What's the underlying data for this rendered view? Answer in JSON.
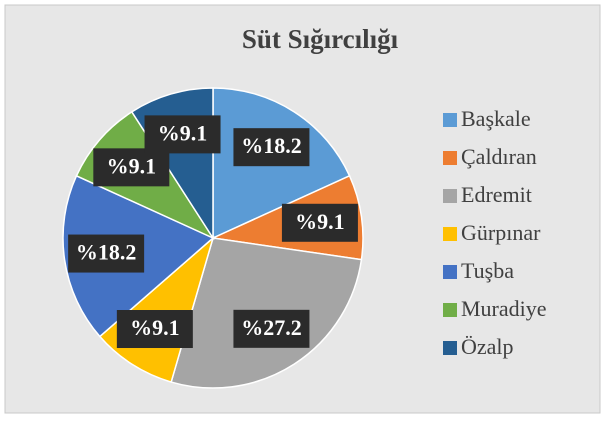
{
  "chart_data": {
    "type": "pie",
    "title": "Süt Sığırcılığı",
    "categories": [
      "Başkale",
      "Çaldıran",
      "Edremit",
      "Gürpınar",
      "Tuşba",
      "Muradiye",
      "Özalp"
    ],
    "values": [
      18.2,
      9.1,
      27.2,
      9.1,
      18.2,
      9.1,
      9.1
    ],
    "value_labels": [
      "%18.2",
      "%9.1",
      "%27.2",
      "%9.1",
      "%18.2",
      "%9.1",
      "%9.1"
    ],
    "colors": [
      "#5b9bd5",
      "#ed7d31",
      "#a5a5a5",
      "#ffc000",
      "#4472c4",
      "#70ad47",
      "#255e91"
    ],
    "legend": "right"
  }
}
